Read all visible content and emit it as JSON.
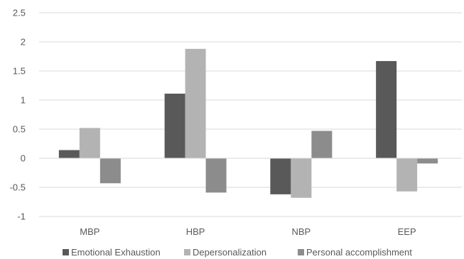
{
  "chart_data": {
    "type": "bar",
    "title": "",
    "xlabel": "",
    "ylabel": "",
    "categories": [
      "MBP",
      "HBP",
      "NBP",
      "EEP"
    ],
    "ylim": [
      -1,
      2.5
    ],
    "yticks": [
      "2.5",
      "2",
      "1.5",
      "1",
      "0.5",
      "0",
      "-0.5",
      "-1"
    ],
    "ytick_values": [
      2.5,
      2,
      1.5,
      1,
      0.5,
      0,
      -0.5,
      -1
    ],
    "grid": true,
    "legend_position": "bottom",
    "series": [
      {
        "name": "Emotional Exhaustion",
        "color": "#595959",
        "values": [
          0.14,
          1.11,
          -0.62,
          1.67
        ]
      },
      {
        "name": "Depersonalization",
        "color": "#b3b3b3",
        "values": [
          0.52,
          1.88,
          -0.68,
          -0.57
        ]
      },
      {
        "name": "Personal accomplishment",
        "color": "#8c8c8c",
        "values": [
          -0.43,
          -0.59,
          0.47,
          -0.09
        ]
      }
    ]
  }
}
